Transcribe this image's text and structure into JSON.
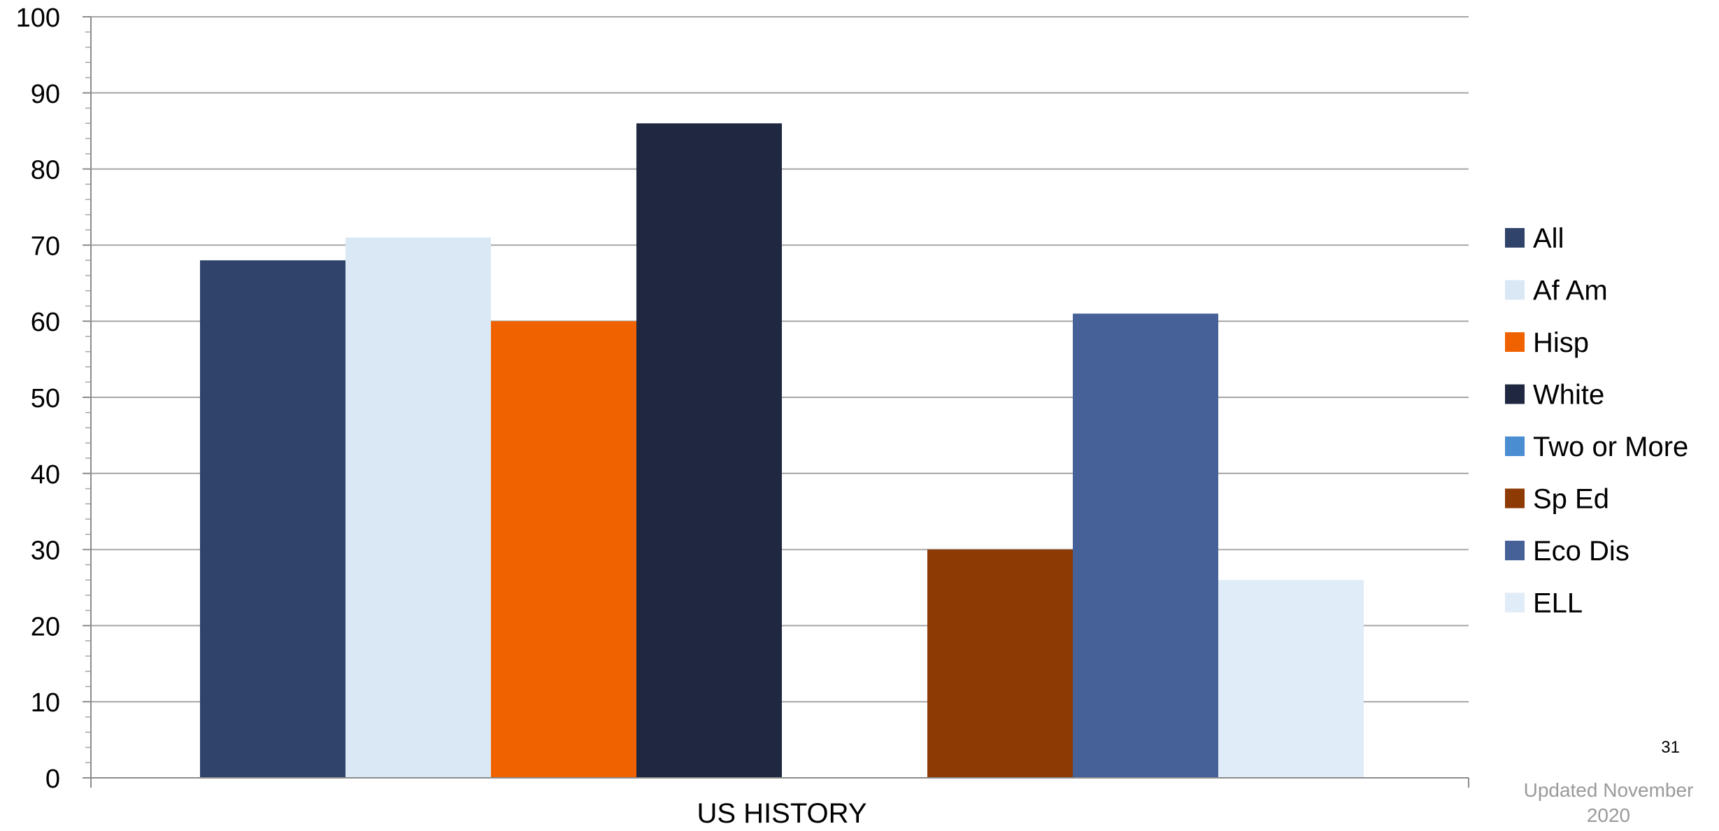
{
  "chart_data": {
    "type": "bar",
    "categories": [
      "US HISTORY"
    ],
    "series": [
      {
        "name": "All",
        "values": [
          68
        ],
        "color": "#30436B"
      },
      {
        "name": "Af Am",
        "values": [
          71
        ],
        "color": "#DAE8F6"
      },
      {
        "name": "Hisp",
        "values": [
          60
        ],
        "color": "#F06200"
      },
      {
        "name": "White",
        "values": [
          86
        ],
        "color": "#1F2840"
      },
      {
        "name": "Two or More",
        "values": [
          null
        ],
        "color": "#4A8DD0"
      },
      {
        "name": "Sp Ed",
        "values": [
          30
        ],
        "color": "#8E3A04"
      },
      {
        "name": "Eco Dis",
        "values": [
          61
        ],
        "color": "#466197"
      },
      {
        "name": "ELL",
        "values": [
          26
        ],
        "color": "#E0ECF7"
      }
    ],
    "ylim": [
      0,
      100
    ],
    "yticks": [
      "0",
      "10",
      "20",
      "30",
      "40",
      "50",
      "60",
      "70",
      "80",
      "90",
      "100"
    ],
    "grid": true,
    "legend_position": "right"
  },
  "footer": {
    "page_number": "31",
    "updated_note": "Updated November 2020"
  }
}
